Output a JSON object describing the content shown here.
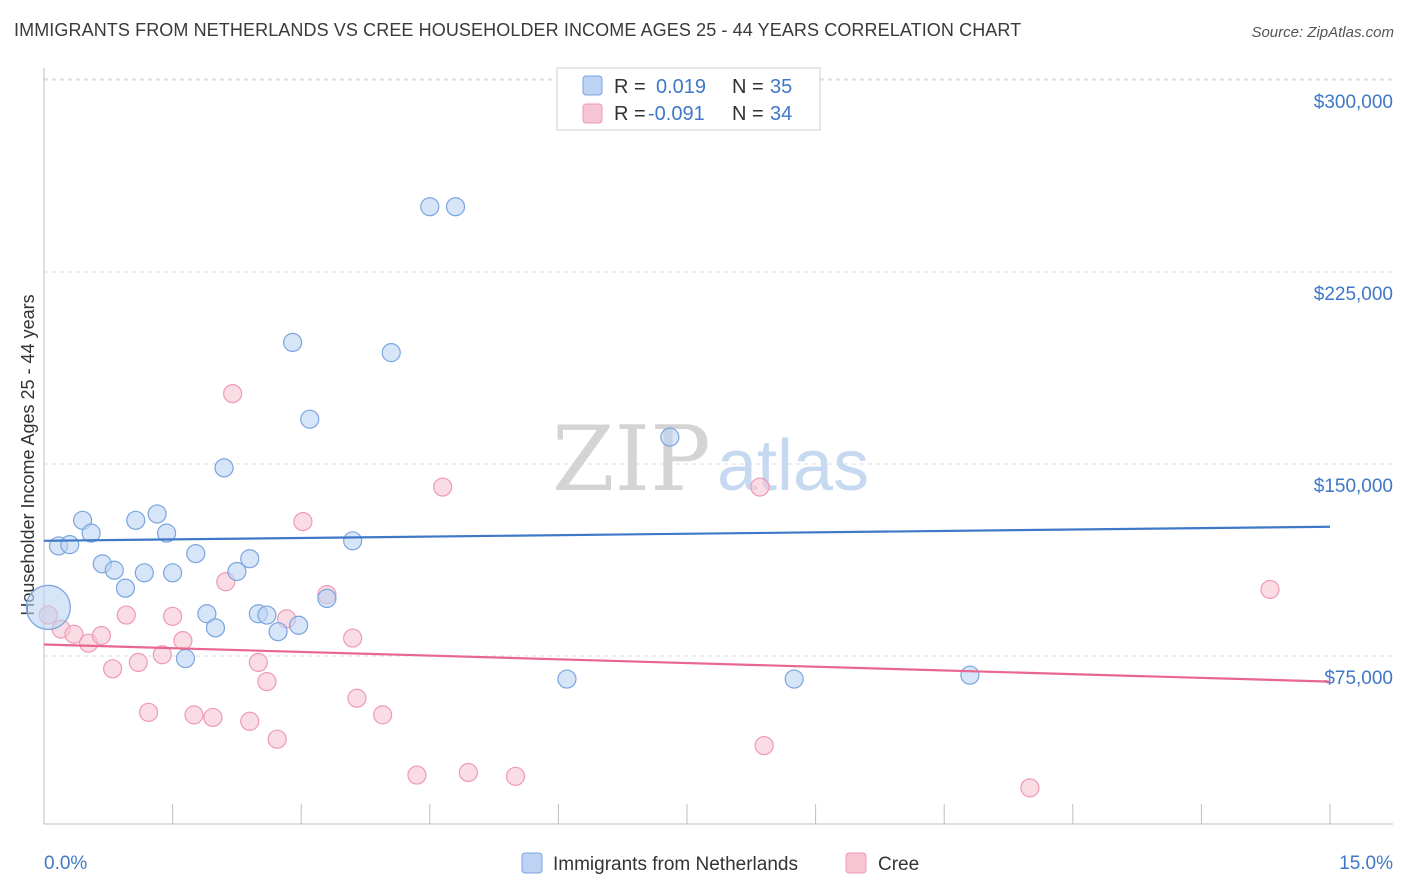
{
  "title": "IMMIGRANTS FROM NETHERLANDS VS CREE HOUSEHOLDER INCOME AGES 25 - 44 YEARS CORRELATION CHART",
  "source": "Source: ZipAtlas.com",
  "watermark": {
    "part1": "ZIP",
    "part2": "atlas"
  },
  "colors": {
    "blue": "#3f78c8",
    "blue_fill": "#bcd3f3",
    "blue_stroke": "#7aa5de",
    "pink": "#e8668f",
    "pink_fill": "#f7c4d3",
    "pink_stroke": "#ef9ab5"
  },
  "legend": {
    "row1": {
      "r_label": "R =",
      "r_value": "0.019",
      "n_label": "N =",
      "n_value": "35"
    },
    "row2": {
      "r_label": "R =",
      "r_value": "-0.091",
      "n_label": "N =",
      "n_value": "34"
    }
  },
  "bottom_legend": {
    "series1": "Immigrants from Netherlands",
    "series2": "Cree"
  },
  "chart_data": {
    "type": "scatter",
    "title": "IMMIGRANTS FROM NETHERLANDS VS CREE HOUSEHOLDER INCOME AGES 25 - 44 YEARS CORRELATION CHART",
    "xlabel": "",
    "ylabel": "Householder Income Ages 25 - 44 years",
    "xlim": [
      0,
      15
    ],
    "ylim": [
      0,
      310000
    ],
    "x_tick_labels": {
      "left": "0.0%",
      "right": "15.0%"
    },
    "y_ticks": [
      {
        "value": 75000,
        "label": "$75,000"
      },
      {
        "value": 150000,
        "label": "$150,000"
      },
      {
        "value": 225000,
        "label": "$225,000"
      },
      {
        "value": 300000,
        "label": "$300,000"
      }
    ],
    "series": [
      {
        "name": "Immigrants from Netherlands",
        "r": 0.019,
        "n": 35,
        "trend": {
          "x0": 0.0,
          "y0": 120000,
          "x1": 15.0,
          "y1": 125500
        },
        "points": [
          {
            "x": 0.05,
            "y": 94000,
            "big": true
          },
          {
            "x": 0.17,
            "y": 118000
          },
          {
            "x": 0.3,
            "y": 118500
          },
          {
            "x": 0.45,
            "y": 128000
          },
          {
            "x": 0.55,
            "y": 123000
          },
          {
            "x": 0.68,
            "y": 111000
          },
          {
            "x": 0.82,
            "y": 108500
          },
          {
            "x": 0.95,
            "y": 101500
          },
          {
            "x": 1.07,
            "y": 128000
          },
          {
            "x": 1.17,
            "y": 107500
          },
          {
            "x": 1.32,
            "y": 130500
          },
          {
            "x": 1.43,
            "y": 123000
          },
          {
            "x": 1.5,
            "y": 107500
          },
          {
            "x": 1.65,
            "y": 74000
          },
          {
            "x": 1.77,
            "y": 115000
          },
          {
            "x": 1.9,
            "y": 91500
          },
          {
            "x": 2.0,
            "y": 86000
          },
          {
            "x": 2.1,
            "y": 148500
          },
          {
            "x": 2.25,
            "y": 108000
          },
          {
            "x": 2.4,
            "y": 113000
          },
          {
            "x": 2.5,
            "y": 91500
          },
          {
            "x": 2.6,
            "y": 91000
          },
          {
            "x": 2.73,
            "y": 84500
          },
          {
            "x": 2.9,
            "y": 197500
          },
          {
            "x": 2.97,
            "y": 87000
          },
          {
            "x": 3.1,
            "y": 167500
          },
          {
            "x": 3.3,
            "y": 97500
          },
          {
            "x": 3.6,
            "y": 120000
          },
          {
            "x": 4.05,
            "y": 193500
          },
          {
            "x": 4.5,
            "y": 250500
          },
          {
            "x": 4.8,
            "y": 250500
          },
          {
            "x": 6.1,
            "y": 66000
          },
          {
            "x": 7.3,
            "y": 160500
          },
          {
            "x": 8.75,
            "y": 66000
          },
          {
            "x": 10.8,
            "y": 67500
          }
        ]
      },
      {
        "name": "Cree",
        "r": -0.091,
        "n": 34,
        "trend": {
          "x0": 0.0,
          "y0": 79500,
          "x1": 15.0,
          "y1": 65000
        },
        "points": [
          {
            "x": 0.05,
            "y": 91000
          },
          {
            "x": 0.2,
            "y": 85500
          },
          {
            "x": 0.35,
            "y": 83500
          },
          {
            "x": 0.52,
            "y": 80000
          },
          {
            "x": 0.67,
            "y": 83000
          },
          {
            "x": 0.8,
            "y": 70000
          },
          {
            "x": 0.96,
            "y": 91000
          },
          {
            "x": 1.1,
            "y": 72500
          },
          {
            "x": 1.22,
            "y": 53000
          },
          {
            "x": 1.38,
            "y": 75500
          },
          {
            "x": 1.5,
            "y": 90500
          },
          {
            "x": 1.62,
            "y": 81000
          },
          {
            "x": 1.75,
            "y": 52000
          },
          {
            "x": 1.97,
            "y": 51000
          },
          {
            "x": 2.12,
            "y": 104000
          },
          {
            "x": 2.2,
            "y": 177500
          },
          {
            "x": 2.4,
            "y": 49500
          },
          {
            "x": 2.5,
            "y": 72500
          },
          {
            "x": 2.6,
            "y": 65000
          },
          {
            "x": 2.72,
            "y": 42500
          },
          {
            "x": 2.83,
            "y": 89500
          },
          {
            "x": 3.02,
            "y": 127500
          },
          {
            "x": 3.3,
            "y": 99000
          },
          {
            "x": 3.6,
            "y": 82000
          },
          {
            "x": 3.65,
            "y": 58500
          },
          {
            "x": 3.95,
            "y": 52000
          },
          {
            "x": 4.35,
            "y": 28500
          },
          {
            "x": 4.65,
            "y": 141000
          },
          {
            "x": 4.95,
            "y": 29500
          },
          {
            "x": 5.5,
            "y": 28000
          },
          {
            "x": 8.4,
            "y": 40000
          },
          {
            "x": 8.35,
            "y": 141000
          },
          {
            "x": 11.5,
            "y": 23500
          },
          {
            "x": 14.3,
            "y": 101000
          }
        ]
      }
    ]
  }
}
